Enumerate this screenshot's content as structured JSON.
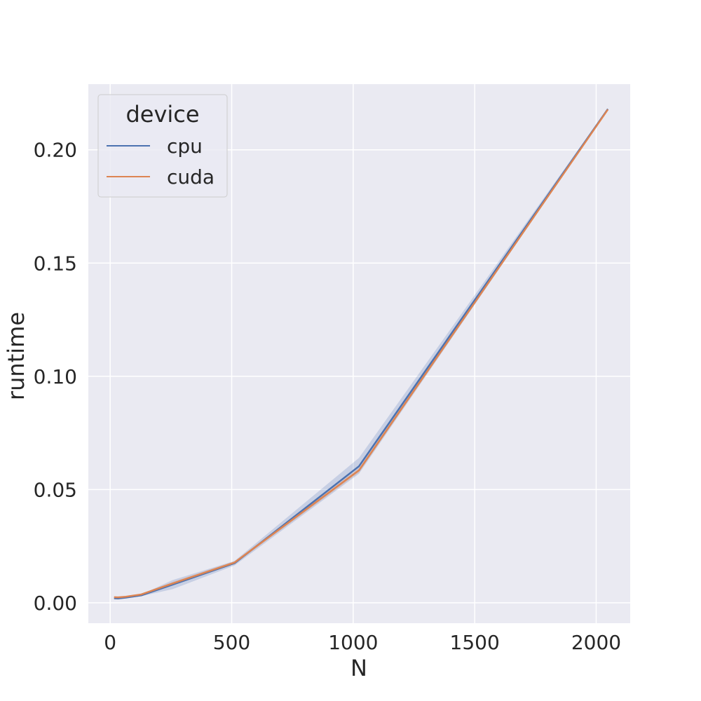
{
  "chart_data": {
    "type": "line",
    "xlabel": "N",
    "ylabel": "runtime",
    "xlim": [
      -90,
      2140
    ],
    "ylim": [
      -0.009,
      0.229
    ],
    "xticks": [
      0,
      500,
      1000,
      1500,
      2000
    ],
    "yticks": [
      0.0,
      0.05,
      0.1,
      0.15,
      0.2
    ],
    "xtick_labels": [
      "0",
      "500",
      "1000",
      "1500",
      "2000"
    ],
    "ytick_labels": [
      "0.00",
      "0.05",
      "0.10",
      "0.15",
      "0.20"
    ],
    "grid": true,
    "legend": {
      "title": "device",
      "placement": "top-left"
    },
    "x": [
      16,
      32,
      64,
      128,
      256,
      512,
      1024,
      2048
    ],
    "series": [
      {
        "name": "cpu",
        "color": "#4c72b0",
        "values": [
          0.002,
          0.0019,
          0.0023,
          0.0033,
          0.008,
          0.0175,
          0.0603,
          0.218
        ],
        "ci_low": [
          0.0018,
          0.0017,
          0.002,
          0.0029,
          0.006,
          0.0165,
          0.057,
          0.2175
        ],
        "ci_high": [
          0.0022,
          0.0021,
          0.0026,
          0.0037,
          0.01,
          0.0185,
          0.064,
          0.2185
        ]
      },
      {
        "name": "cuda",
        "color": "#dd8452",
        "values": [
          0.0025,
          0.0024,
          0.0027,
          0.0037,
          0.0085,
          0.0178,
          0.0585,
          0.2178
        ],
        "ci_low": [
          0.0023,
          0.0022,
          0.0025,
          0.0034,
          0.0078,
          0.0172,
          0.0575,
          0.2174
        ],
        "ci_high": [
          0.0027,
          0.0026,
          0.0029,
          0.004,
          0.0092,
          0.0184,
          0.0595,
          0.2182
        ]
      }
    ]
  }
}
